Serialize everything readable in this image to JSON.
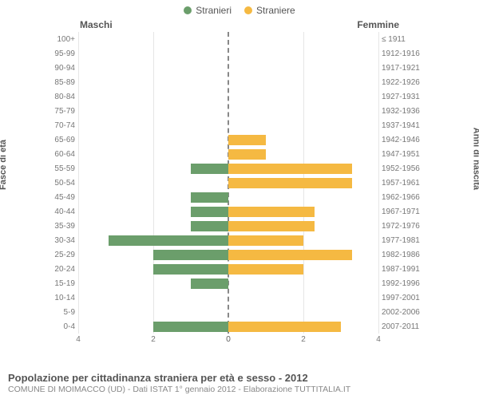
{
  "legend": {
    "male": {
      "label": "Stranieri",
      "color": "#6b9e6b"
    },
    "female": {
      "label": "Straniere",
      "color": "#f5b942"
    }
  },
  "columns": {
    "left": "Maschi",
    "right": "Femmine"
  },
  "axis_labels": {
    "left": "Fasce di età",
    "right": "Anni di nascita"
  },
  "x_axis": {
    "max": 4,
    "ticks": [
      0,
      2,
      4
    ]
  },
  "chart": {
    "bar_color_male": "#6b9e6b",
    "bar_color_female": "#f5b942",
    "grid_color": "#e6e6e6",
    "center_line_color": "#888888",
    "background": "#ffffff"
  },
  "rows": [
    {
      "age": "100+",
      "birth": "≤ 1911",
      "m": 0,
      "f": 0
    },
    {
      "age": "95-99",
      "birth": "1912-1916",
      "m": 0,
      "f": 0
    },
    {
      "age": "90-94",
      "birth": "1917-1921",
      "m": 0,
      "f": 0
    },
    {
      "age": "85-89",
      "birth": "1922-1926",
      "m": 0,
      "f": 0
    },
    {
      "age": "80-84",
      "birth": "1927-1931",
      "m": 0,
      "f": 0
    },
    {
      "age": "75-79",
      "birth": "1932-1936",
      "m": 0,
      "f": 0
    },
    {
      "age": "70-74",
      "birth": "1937-1941",
      "m": 0,
      "f": 0
    },
    {
      "age": "65-69",
      "birth": "1942-1946",
      "m": 0,
      "f": 1
    },
    {
      "age": "60-64",
      "birth": "1947-1951",
      "m": 0,
      "f": 1
    },
    {
      "age": "55-59",
      "birth": "1952-1956",
      "m": 1,
      "f": 3.3
    },
    {
      "age": "50-54",
      "birth": "1957-1961",
      "m": 0,
      "f": 3.3
    },
    {
      "age": "45-49",
      "birth": "1962-1966",
      "m": 1,
      "f": 0
    },
    {
      "age": "40-44",
      "birth": "1967-1971",
      "m": 1,
      "f": 2.3
    },
    {
      "age": "35-39",
      "birth": "1972-1976",
      "m": 1,
      "f": 2.3
    },
    {
      "age": "30-34",
      "birth": "1977-1981",
      "m": 3.2,
      "f": 2
    },
    {
      "age": "25-29",
      "birth": "1982-1986",
      "m": 2,
      "f": 3.3
    },
    {
      "age": "20-24",
      "birth": "1987-1991",
      "m": 2,
      "f": 2
    },
    {
      "age": "15-19",
      "birth": "1992-1996",
      "m": 1,
      "f": 0
    },
    {
      "age": "10-14",
      "birth": "1997-2001",
      "m": 0,
      "f": 0
    },
    {
      "age": "5-9",
      "birth": "2002-2006",
      "m": 0,
      "f": 0
    },
    {
      "age": "0-4",
      "birth": "2007-2011",
      "m": 2,
      "f": 3
    }
  ],
  "title": "Popolazione per cittadinanza straniera per età e sesso - 2012",
  "subtitle": "COMUNE DI MOIMACCO (UD) - Dati ISTAT 1° gennaio 2012 - Elaborazione TUTTITALIA.IT"
}
